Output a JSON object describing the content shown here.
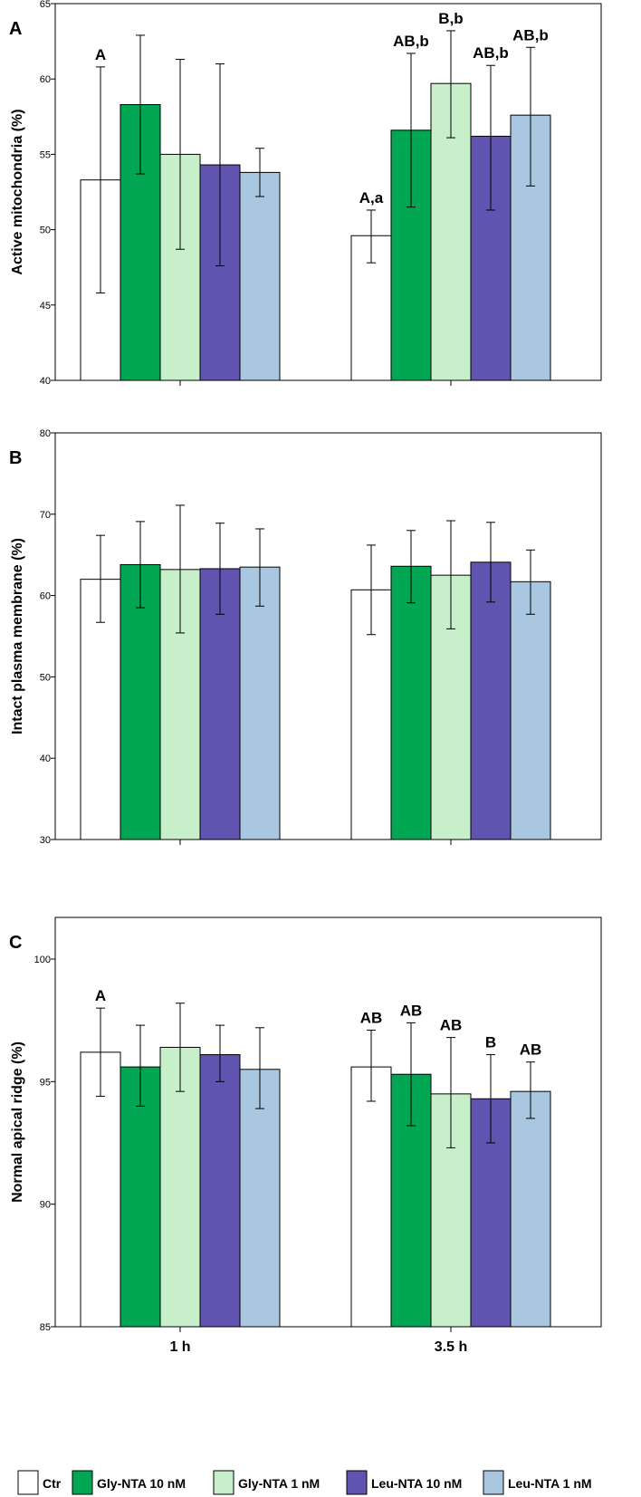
{
  "legend": [
    {
      "label": "Ctr",
      "color": "#ffffff"
    },
    {
      "label": "Gly-NTA 10 nM",
      "color": "#00a651"
    },
    {
      "label": "Gly-NTA 1 nM",
      "color": "#c6efca"
    },
    {
      "label": "Leu-NTA 10 nM",
      "color": "#6153b0"
    },
    {
      "label": "Leu-NTA 1 nM",
      "color": "#a9c7e0"
    }
  ],
  "chart_data": [
    {
      "panel": "A",
      "type": "bar",
      "ylabel": "Active mitochondria (%)",
      "ylim": [
        40,
        65
      ],
      "yticks": [
        40,
        45,
        50,
        55,
        60,
        65
      ],
      "categories": [
        "1 h",
        "3.5 h"
      ],
      "show_xlabels": false,
      "series": [
        {
          "name": "Ctr",
          "values": [
            53.3,
            49.6
          ],
          "err_low": [
            45.8,
            47.8
          ],
          "err_high": [
            60.8,
            51.3
          ],
          "labels": [
            "A",
            "A,a"
          ]
        },
        {
          "name": "Gly-NTA 10 nM",
          "values": [
            58.3,
            56.6
          ],
          "err_low": [
            53.7,
            51.5
          ],
          "err_high": [
            62.9,
            61.7
          ],
          "labels": [
            "",
            "AB,b"
          ]
        },
        {
          "name": "Gly-NTA 1 nM",
          "values": [
            55.0,
            59.7
          ],
          "err_low": [
            48.7,
            56.1
          ],
          "err_high": [
            61.3,
            63.2
          ],
          "labels": [
            "",
            "B,b"
          ]
        },
        {
          "name": "Leu-NTA 10 nM",
          "values": [
            54.3,
            56.2
          ],
          "err_low": [
            47.6,
            51.3
          ],
          "err_high": [
            61.0,
            60.9
          ],
          "labels": [
            "",
            "AB,b"
          ]
        },
        {
          "name": "Leu-NTA 1 nM",
          "values": [
            53.8,
            57.6
          ],
          "err_low": [
            52.2,
            52.9
          ],
          "err_high": [
            55.4,
            62.1
          ],
          "labels": [
            "",
            "AB,b"
          ]
        }
      ]
    },
    {
      "panel": "B",
      "type": "bar",
      "ylabel": "Intact plasma membrane (%)",
      "ylim": [
        30,
        80
      ],
      "yticks": [
        30,
        40,
        50,
        60,
        70,
        80
      ],
      "categories": [
        "1 h",
        "3.5 h"
      ],
      "show_xlabels": false,
      "series": [
        {
          "name": "Ctr",
          "values": [
            62.0,
            60.7
          ],
          "err_low": [
            56.7,
            55.2
          ],
          "err_high": [
            67.4,
            66.2
          ],
          "labels": [
            "",
            ""
          ]
        },
        {
          "name": "Gly-NTA 10 nM",
          "values": [
            63.8,
            63.6
          ],
          "err_low": [
            58.5,
            59.1
          ],
          "err_high": [
            69.1,
            68.0
          ],
          "labels": [
            "",
            ""
          ]
        },
        {
          "name": "Gly-NTA 1 nM",
          "values": [
            63.2,
            62.5
          ],
          "err_low": [
            55.4,
            55.9
          ],
          "err_high": [
            71.1,
            69.2
          ],
          "labels": [
            "",
            ""
          ]
        },
        {
          "name": "Leu-NTA 10 nM",
          "values": [
            63.3,
            64.1
          ],
          "err_low": [
            57.7,
            59.2
          ],
          "err_high": [
            68.9,
            69.0
          ],
          "labels": [
            "",
            ""
          ]
        },
        {
          "name": "Leu-NTA 1 nM",
          "values": [
            63.5,
            61.7
          ],
          "err_low": [
            58.7,
            57.7
          ],
          "err_high": [
            68.2,
            65.6
          ],
          "labels": [
            "",
            ""
          ]
        }
      ]
    },
    {
      "panel": "C",
      "type": "bar",
      "ylabel": "Normal apical ridge (%)",
      "ylim": [
        85,
        101.7
      ],
      "yticks": [
        85,
        90,
        95,
        100
      ],
      "categories": [
        "1 h",
        "3.5 h"
      ],
      "show_xlabels": true,
      "series": [
        {
          "name": "Ctr",
          "values": [
            96.2,
            95.6
          ],
          "err_low": [
            94.4,
            94.2
          ],
          "err_high": [
            98.0,
            97.1
          ],
          "labels": [
            "A",
            "AB"
          ]
        },
        {
          "name": "Gly-NTA 10 nM",
          "values": [
            95.6,
            95.3
          ],
          "err_low": [
            94.0,
            93.2
          ],
          "err_high": [
            97.3,
            97.4
          ],
          "labels": [
            "",
            "AB"
          ]
        },
        {
          "name": "Gly-NTA 1 nM",
          "values": [
            96.4,
            94.5
          ],
          "err_low": [
            94.6,
            92.3
          ],
          "err_high": [
            98.2,
            96.8
          ],
          "labels": [
            "",
            "AB"
          ]
        },
        {
          "name": "Leu-NTA 10 nM",
          "values": [
            96.1,
            94.3
          ],
          "err_low": [
            95.0,
            92.5
          ],
          "err_high": [
            97.3,
            96.1
          ],
          "labels": [
            "",
            "B"
          ]
        },
        {
          "name": "Leu-NTA 1 nM",
          "values": [
            95.5,
            94.6
          ],
          "err_low": [
            93.9,
            93.5
          ],
          "err_high": [
            97.2,
            95.8
          ],
          "labels": [
            "",
            "AB"
          ]
        }
      ]
    }
  ]
}
